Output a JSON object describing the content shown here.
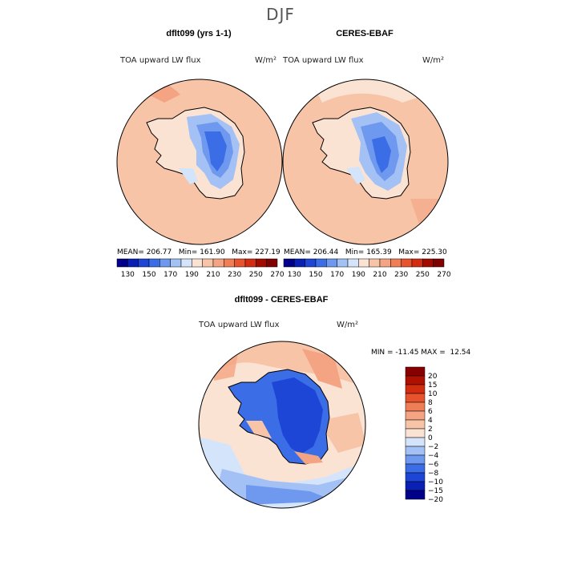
{
  "title": "DJF",
  "panels": [
    {
      "title": "dflt099 (yrs 1-1)",
      "variable": "TOA upward LW flux",
      "units": "W/m²",
      "stats": {
        "mean": "206.77",
        "min": "161.90",
        "max": "227.19"
      },
      "stats_line": "MEAN= 206.77   Min= 161.90   Max= 227.19"
    },
    {
      "title": "CERES-EBAF",
      "variable": "TOA upward LW flux",
      "units": "W/m²",
      "stats": {
        "mean": "206.44",
        "min": "165.39",
        "max": "225.30"
      },
      "stats_line": "MEAN= 206.44   Min= 165.39   Max= 225.30"
    },
    {
      "title": "dflt099 - CERES-EBAF",
      "variable": "TOA upward LW flux",
      "units": "W/m²",
      "stats": {
        "min": "-11.45",
        "max": "12.54"
      },
      "stats_line": "MIN = -11.45 MAX =  12.54"
    }
  ],
  "colorbar_top": {
    "ticks": [
      "130",
      "150",
      "170",
      "190",
      "210",
      "230",
      "250",
      "270"
    ],
    "colors": [
      "#00008b",
      "#0a1fb4",
      "#1e46d6",
      "#3a6de6",
      "#6f98ef",
      "#a3c1f5",
      "#d4e4fb",
      "#fbe3d3",
      "#f7c4a8",
      "#f4a482",
      "#ef7d56",
      "#e8532d",
      "#d22d10",
      "#a20c00",
      "#800000"
    ]
  },
  "colorbar_diff": {
    "ticks": [
      "20",
      "15",
      "10",
      "8",
      "6",
      "4",
      "2",
      "0",
      "−2",
      "−4",
      "−6",
      "−8",
      "−10",
      "−15",
      "−20"
    ],
    "colors": [
      "#880000",
      "#b01000",
      "#d22d10",
      "#e8532d",
      "#ef7d56",
      "#f4a482",
      "#f7c4a8",
      "#fbe3d3",
      "#d4e4fb",
      "#a3c1f5",
      "#6f98ef",
      "#3a6de6",
      "#1e46d6",
      "#0a1fb4",
      "#00008b"
    ]
  }
}
